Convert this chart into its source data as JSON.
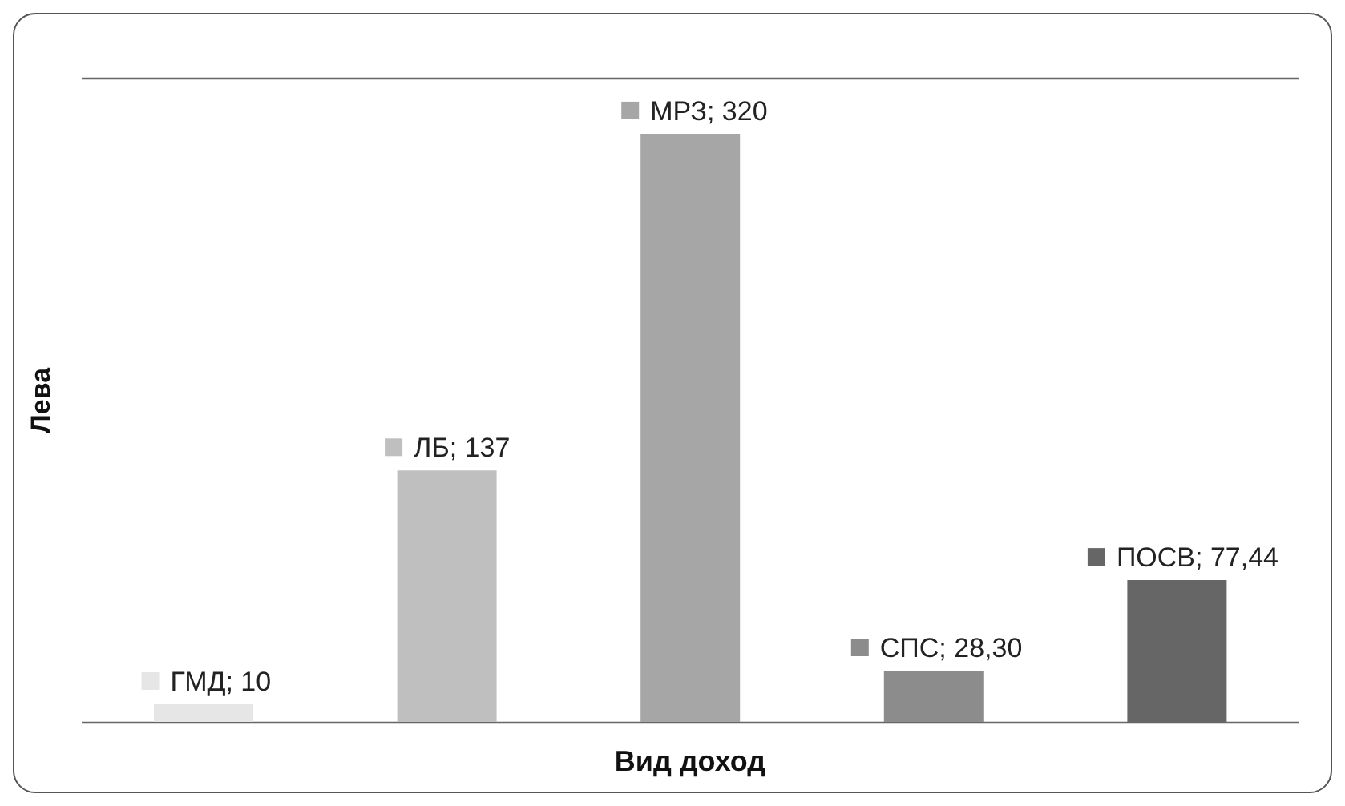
{
  "chart_data": {
    "type": "bar",
    "xlabel": "Вид доход",
    "ylabel": "Лева",
    "categories": [
      null,
      null,
      null,
      null,
      null
    ],
    "values": [
      10,
      137,
      320,
      28.3,
      77.44
    ],
    "value_labels": [
      "ГМД; 10",
      "ЛБ; 137",
      "МРЗ; 320",
      "СПС; 28,30",
      "ПОСВ; 77,44"
    ],
    "colors": [
      "#e6e6e6",
      "#bfbfbf",
      "#a6a6a6",
      "#8c8c8c",
      "#666666"
    ],
    "grid": "y",
    "tick_labels": false
  }
}
